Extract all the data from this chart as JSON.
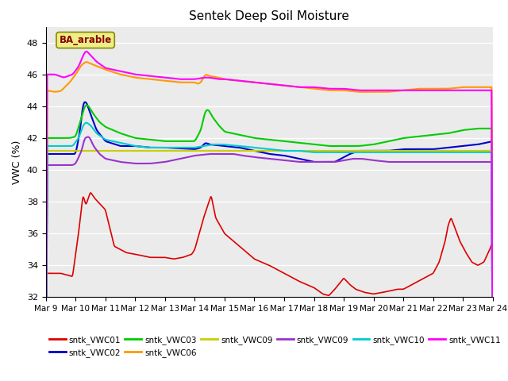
{
  "title": "Sentek Deep Soil Moisture",
  "ylabel": "VWC (%)",
  "ylim": [
    32,
    49
  ],
  "yticks": [
    32,
    34,
    36,
    38,
    40,
    42,
    44,
    46,
    48
  ],
  "annotation": "BA_arable",
  "annotation_color": "#8B0000",
  "annotation_bg": "#EEEE88",
  "bg_color": "#EBEBEB",
  "series": {
    "sntk_VWC01": {
      "color": "#DD0000",
      "lw": 1.2
    },
    "sntk_VWC02": {
      "color": "#0000CC",
      "lw": 1.5
    },
    "sntk_VWC03": {
      "color": "#00CC00",
      "lw": 1.5
    },
    "sntk_VWC06": {
      "color": "#FF9900",
      "lw": 1.5
    },
    "sntk_VWC09y": {
      "color": "#CCCC00",
      "lw": 1.5
    },
    "sntk_VWC09p": {
      "color": "#9933CC",
      "lw": 1.5
    },
    "sntk_VWC10": {
      "color": "#00CCCC",
      "lw": 1.5
    },
    "sntk_VWC11": {
      "color": "#FF00FF",
      "lw": 1.5
    }
  },
  "xtick_labels": [
    "Mar 9",
    "Mar 10",
    "Mar 11",
    "Mar 12",
    "Mar 13",
    "Mar 14",
    "Mar 15",
    "Mar 16",
    "Mar 17",
    "Mar 18",
    "Mar 19",
    "Mar 20",
    "Mar 21",
    "Mar 22",
    "Mar 23",
    "Mar 24"
  ],
  "legend_entries": [
    {
      "label": "sntk_VWC01",
      "color": "#DD0000"
    },
    {
      "label": "sntk_VWC02",
      "color": "#0000CC"
    },
    {
      "label": "sntk_VWC03",
      "color": "#00CC00"
    },
    {
      "label": "sntk_VWC06",
      "color": "#FF9900"
    },
    {
      "label": "sntk_VWC09",
      "color": "#CCCC00"
    },
    {
      "label": "sntk_VWC09",
      "color": "#9933CC"
    },
    {
      "label": "sntk_VWC10",
      "color": "#00CCCC"
    },
    {
      "label": "sntk_VWC11",
      "color": "#FF00FF"
    }
  ]
}
